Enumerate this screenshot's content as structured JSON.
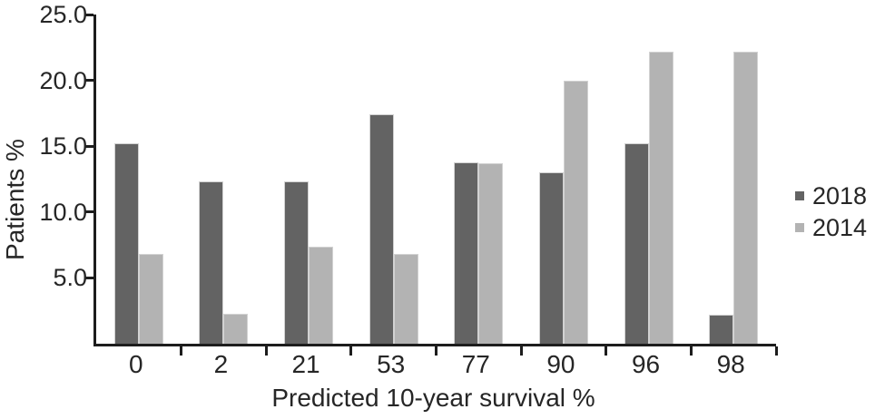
{
  "chart_data": {
    "type": "bar",
    "title": "",
    "xlabel": "Predicted 10-year survival %",
    "ylabel": "Patients %",
    "categories": [
      "0",
      "2",
      "21",
      "53",
      "77",
      "90",
      "96",
      "98"
    ],
    "series": [
      {
        "name": "2018",
        "color": "#636363",
        "values": [
          15.2,
          12.3,
          12.3,
          17.4,
          13.8,
          13.0,
          15.2,
          2.2
        ]
      },
      {
        "name": "2014",
        "color": "#b3b3b3",
        "values": [
          6.8,
          2.3,
          7.4,
          6.8,
          13.7,
          20.0,
          22.2,
          22.2
        ]
      }
    ],
    "ylim": [
      0,
      25
    ],
    "y_ticks": [
      {
        "value": 5,
        "label": "5.0"
      },
      {
        "value": 10,
        "label": "10.0"
      },
      {
        "value": 15,
        "label": "15.0"
      },
      {
        "value": 20,
        "label": "20.0"
      },
      {
        "value": 25,
        "label": "25.0"
      }
    ],
    "grid": false,
    "legend_position": "right"
  },
  "colors": {
    "axis": "#1d1d1d",
    "text": "#262626",
    "background": "#ffffff",
    "bar_outline": "#d2d2d2"
  }
}
